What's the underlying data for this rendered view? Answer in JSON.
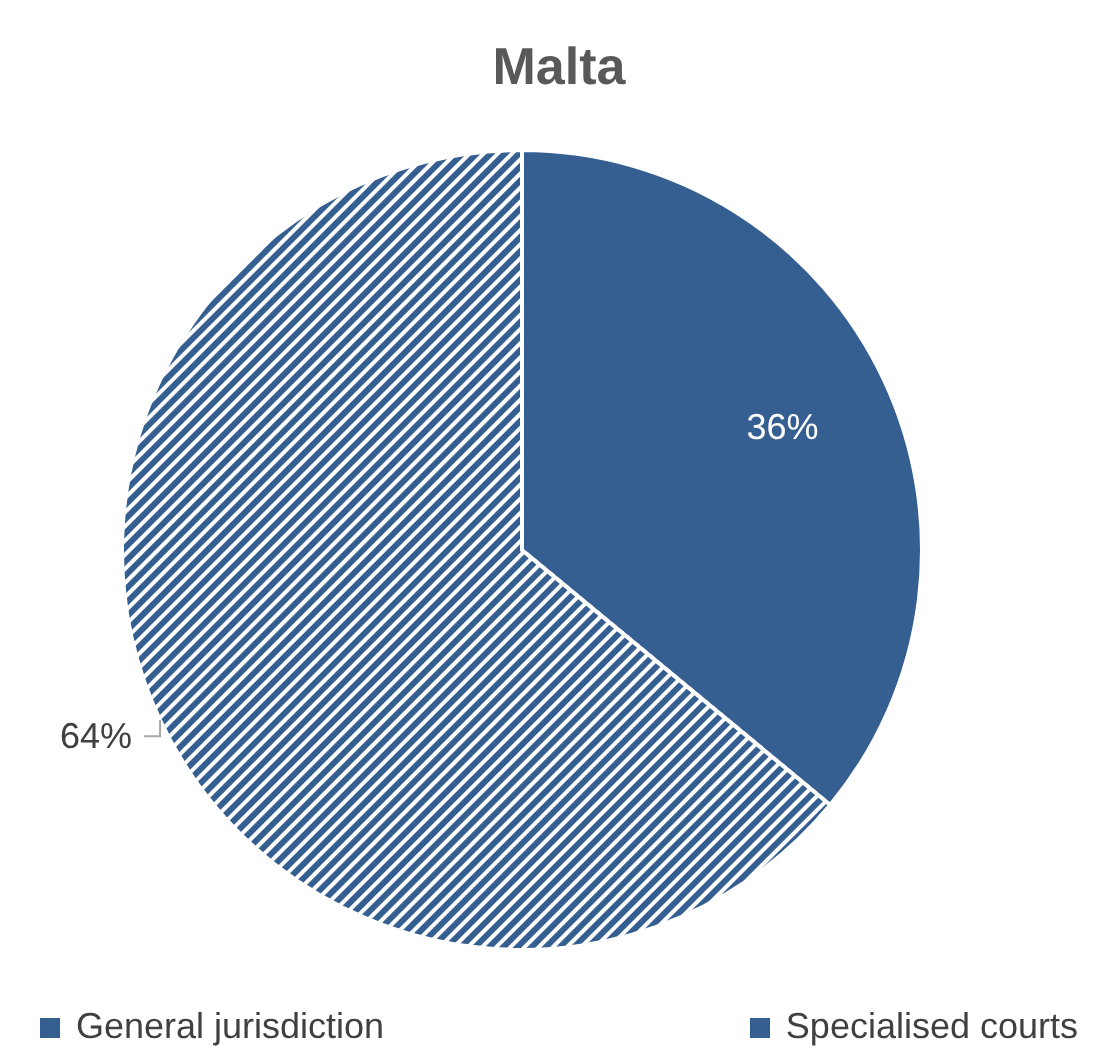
{
  "chart_data": {
    "type": "pie",
    "title": "Malta",
    "categories": [
      "General jurisdiction",
      "Specialised courts"
    ],
    "values": [
      36,
      64
    ],
    "value_labels": [
      "36%",
      "64%"
    ],
    "colors": [
      "#365f91",
      "#365f91"
    ],
    "legend": "bottom"
  }
}
